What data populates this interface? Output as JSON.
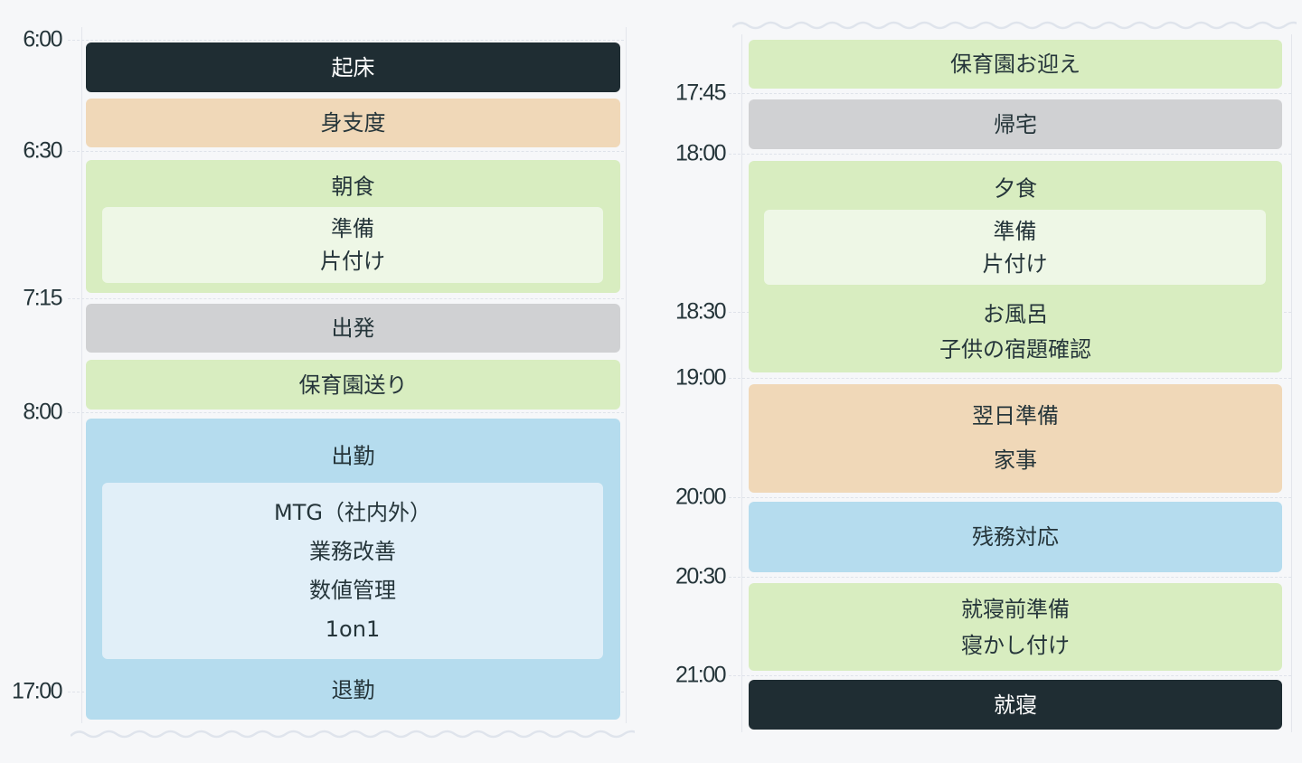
{
  "colors": {
    "dark": "#1f2d33",
    "orange": "#f0d8b8",
    "green": "#d8edc0",
    "gray": "#d0d1d3",
    "blue": "#b5dcee",
    "text": "#25353a"
  },
  "left": {
    "times": [
      "6:00",
      "6:30",
      "7:15",
      "8:00",
      "17:00"
    ],
    "wake": "起床",
    "prep": "身支度",
    "breakfast": {
      "title": "朝食",
      "items": [
        "準備",
        "片付け"
      ]
    },
    "depart": "出発",
    "daycare_dropoff": "保育園送り",
    "work": {
      "title": "出勤",
      "items": [
        "MTG（社内外）",
        "業務改善",
        "数値管理",
        "1on1"
      ],
      "end": "退勤"
    }
  },
  "right": {
    "times": [
      "17:45",
      "18:00",
      "18:30",
      "19:00",
      "20:00",
      "20:30",
      "21:00"
    ],
    "daycare_pickup": "保育園お迎え",
    "home": "帰宅",
    "dinner": {
      "title": "夕食",
      "items": [
        "準備",
        "片付け"
      ],
      "after": [
        "お風呂",
        "子供の宿題確認"
      ]
    },
    "next_day": [
      "翌日準備",
      "家事"
    ],
    "leftover_work": "残務対応",
    "bedtime_prep": [
      "就寝前準備",
      "寝かし付け"
    ],
    "sleep": "就寝"
  }
}
